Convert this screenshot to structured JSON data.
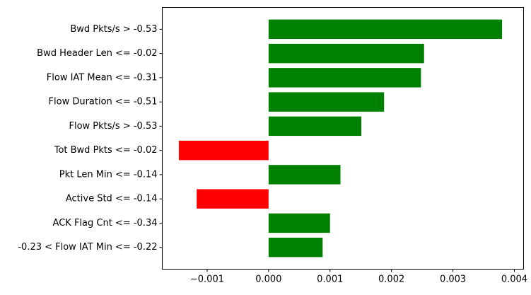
{
  "chart_data": {
    "type": "bar",
    "orientation": "horizontal",
    "title": "",
    "xlabel": "",
    "ylabel": "",
    "xlim": [
      -0.00173,
      0.00415
    ],
    "grid": false,
    "legend": "none",
    "categories": [
      "Bwd Pkts/s > -0.53",
      "Bwd Header Len <= -0.02",
      "Flow IAT Mean <= -0.31",
      "Flow Duration <= -0.51",
      "Flow Pkts/s > -0.53",
      "Tot Bwd Pkts <= -0.02",
      "Pkt Len Min <= -0.14",
      "Active Std <= -0.14",
      "ACK Flag Cnt <= -0.34",
      "-0.23 < Flow IAT Min <= -0.22"
    ],
    "values": [
      0.0038,
      0.00253,
      0.00248,
      0.00188,
      0.00151,
      -0.00146,
      0.00117,
      -0.00117,
      0.001,
      0.00088
    ],
    "xticks": [
      -0.001,
      0.0,
      0.001,
      0.002,
      0.003,
      0.004
    ],
    "xtick_labels": [
      "−0.001",
      "0.000",
      "0.001",
      "0.002",
      "0.003",
      "0.004"
    ],
    "colors": {
      "positive": "#008000",
      "negative": "#ff0000",
      "axis": "#000000"
    }
  }
}
